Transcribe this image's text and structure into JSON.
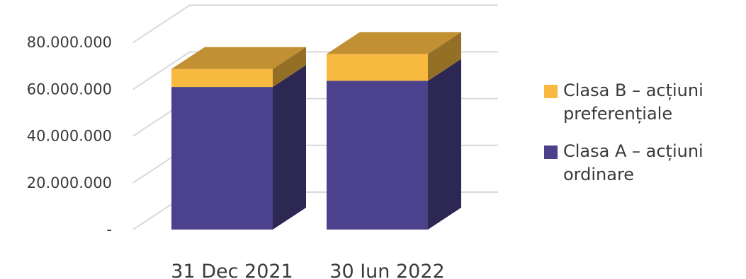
{
  "chart_data": {
    "type": "bar",
    "stacked": true,
    "three_d": true,
    "categories": [
      "31 Dec 2021",
      "30 Iun 2022"
    ],
    "series": [
      {
        "name": "Clasa A – acțiuni ordinare",
        "values": [
          61000000,
          63600000
        ],
        "color": "#4B418C"
      },
      {
        "name": "Clasa B – acțiuni preferențiale",
        "values": [
          7700000,
          11500000
        ],
        "color": "#F7B940"
      }
    ],
    "y_ticks": [
      "-",
      "20.000.000",
      "40.000.000",
      "60.000.000",
      "80.000.000"
    ],
    "ylim": [
      0,
      100000000
    ],
    "grid": true,
    "legend_position": "right",
    "legend_order": [
      "Clasa B – acțiuni preferențiale",
      "Clasa A – acțiuni ordinare"
    ]
  },
  "legend": {
    "items": [
      {
        "label": "Clasa B – acțiuni preferențiale",
        "color": "#F7B940"
      },
      {
        "label": "Clasa A – acțiuni ordinare",
        "color": "#4B418C"
      }
    ]
  }
}
